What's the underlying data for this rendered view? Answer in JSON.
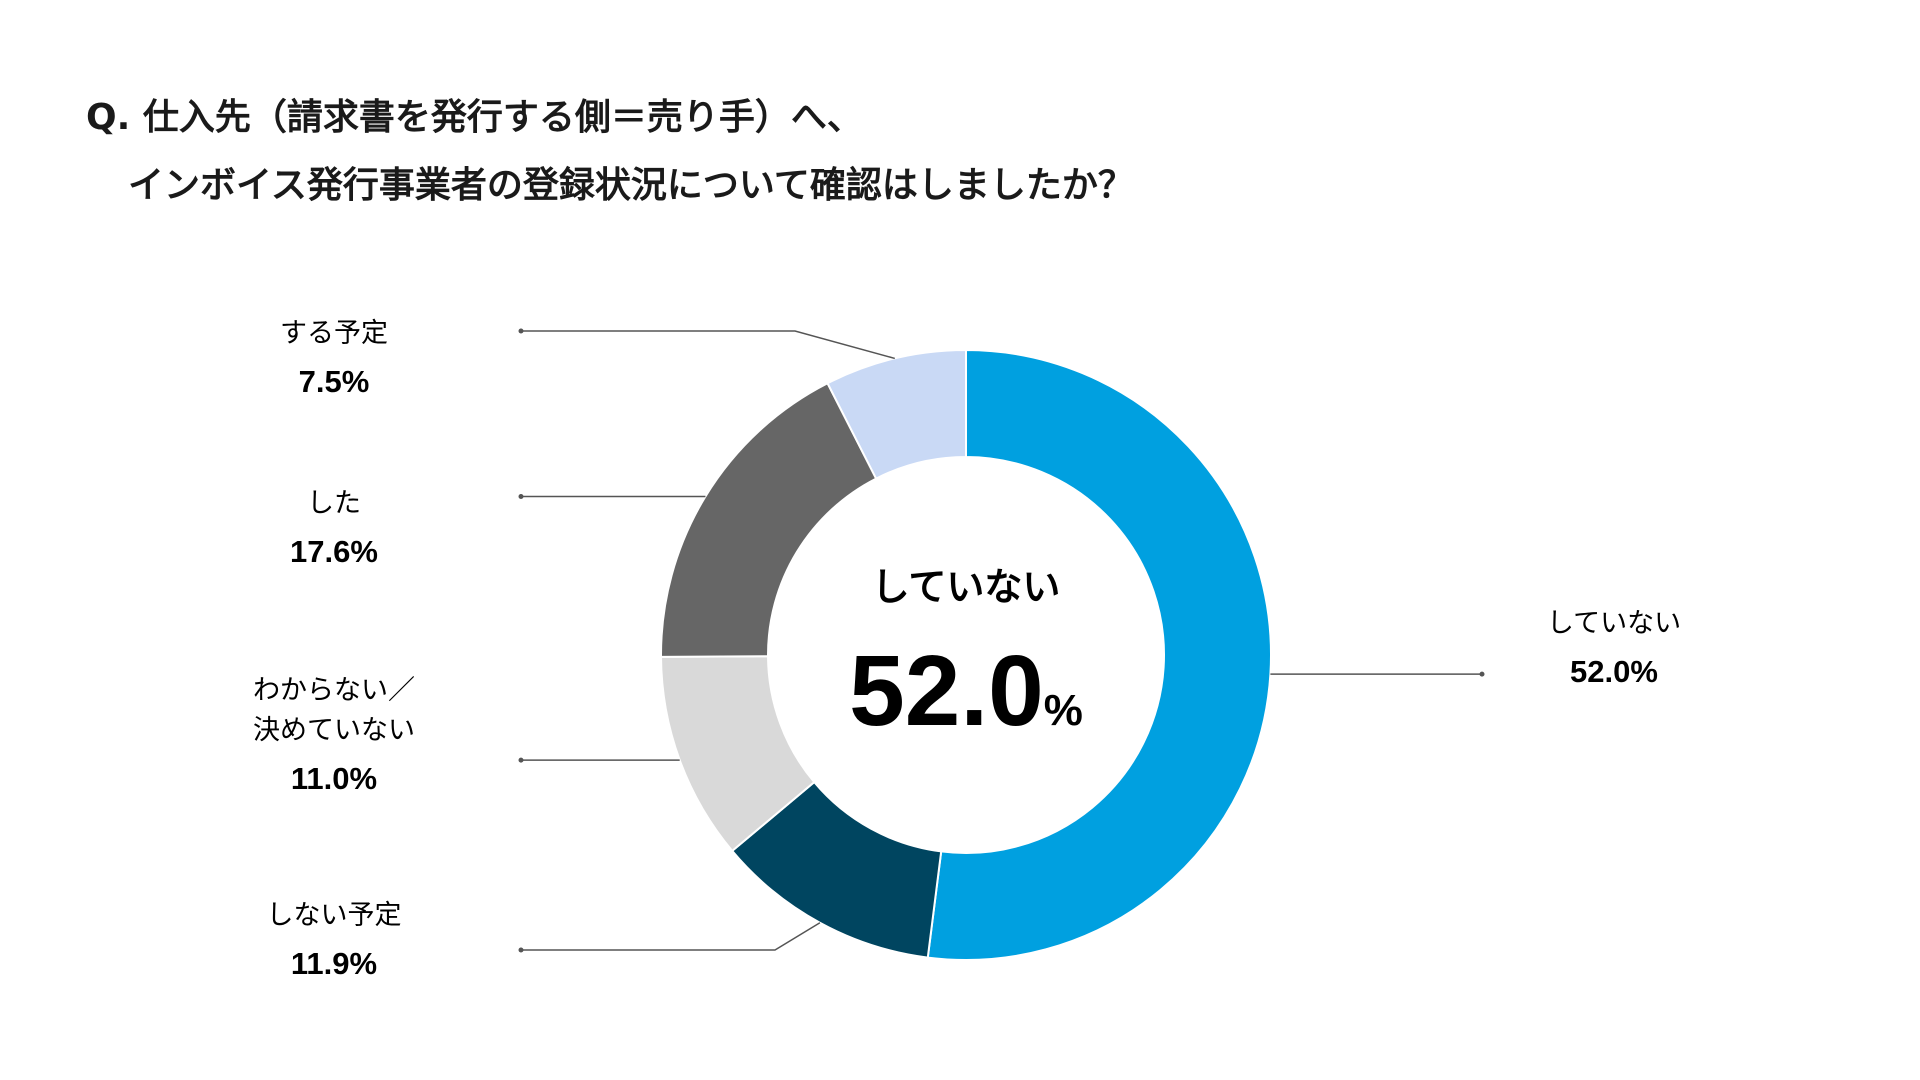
{
  "title": {
    "line1": "Q. 仕入先（請求書を発行する側＝売り手）へ、",
    "line2": "インボイス発行事業者の登録状況について確認はしましたか？"
  },
  "chart_data": {
    "type": "pie",
    "variant": "donut",
    "start": "top, clockwise",
    "center_label": "していない",
    "center_value": "52.0",
    "center_unit": "%",
    "slices": [
      {
        "label": "していない",
        "value": 52.0,
        "value_text": "52.0%",
        "color": "#00A0E0"
      },
      {
        "label": "しない予定",
        "value": 11.9,
        "value_text": "11.9%",
        "color": "#004560"
      },
      {
        "label": "わからない／決めていない",
        "label_lines": [
          "わからない／",
          "決めていない"
        ],
        "value": 11.0,
        "value_text": "11.0%",
        "color": "#D9D9D9"
      },
      {
        "label": "した",
        "value": 17.6,
        "value_text": "17.6%",
        "color": "#666666"
      },
      {
        "label": "する予定",
        "value": 7.5,
        "value_text": "7.5%",
        "color": "#C9D9F5"
      }
    ]
  }
}
